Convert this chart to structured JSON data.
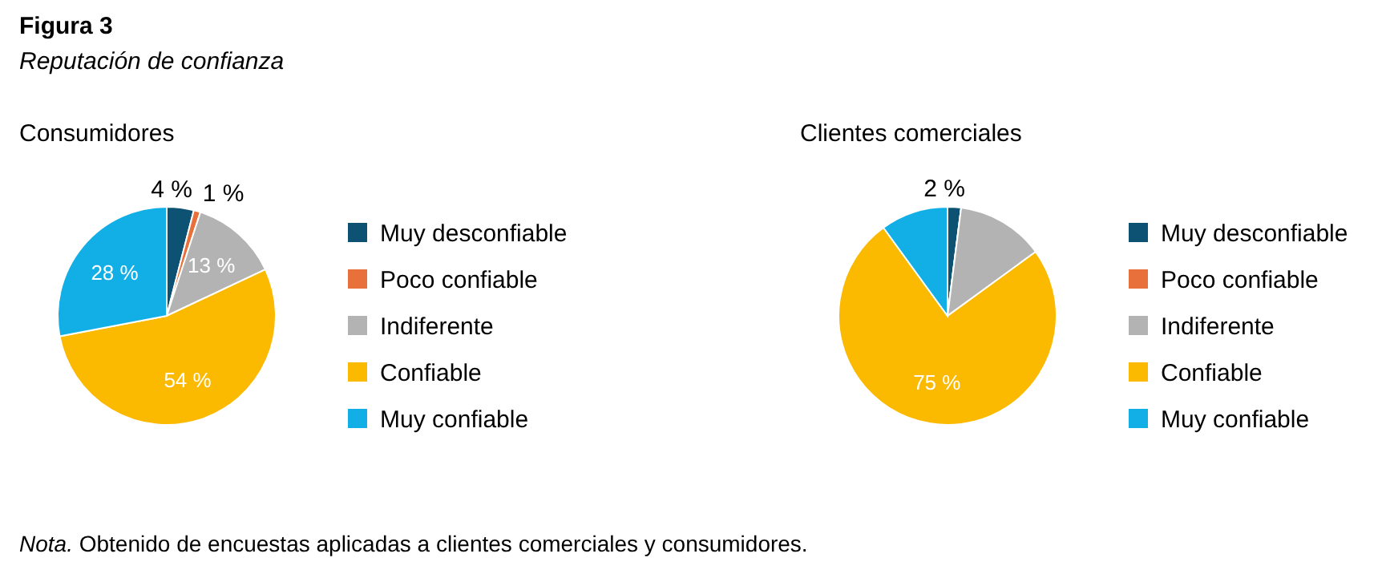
{
  "chart_data": [
    {
      "type": "pie",
      "title": "Consumidores",
      "annotations": [
        "Figura 3",
        "Reputación de confianza",
        "Nota. Obtenido de encuestas aplicadas a clientes comerciales y consumidores."
      ],
      "categories": [
        "Muy desconfiable",
        "Poco confiable",
        "Indiferente",
        "Confiable",
        "Muy confiable"
      ],
      "values": [
        4,
        1,
        13,
        54,
        28
      ],
      "colors": [
        "#0d5273",
        "#e8703a",
        "#b3b3b3",
        "#fbb900",
        "#12aee6"
      ],
      "value_labels": [
        "4 %",
        "1 %",
        "13 %",
        "54 %",
        "28 %"
      ],
      "legend": "right"
    },
    {
      "type": "pie",
      "title": "Clientes comerciales",
      "categories": [
        "Muy desconfiable",
        "Poco confiable",
        "Indiferente",
        "Confiable",
        "Muy confiable"
      ],
      "values": [
        2,
        0,
        13,
        75,
        10
      ],
      "colors": [
        "#0d5273",
        "#e8703a",
        "#b3b3b3",
        "#fbb900",
        "#12aee6"
      ],
      "value_labels": [
        "2 %",
        null,
        null,
        "75 %",
        null
      ],
      "legend": "right"
    }
  ]
}
